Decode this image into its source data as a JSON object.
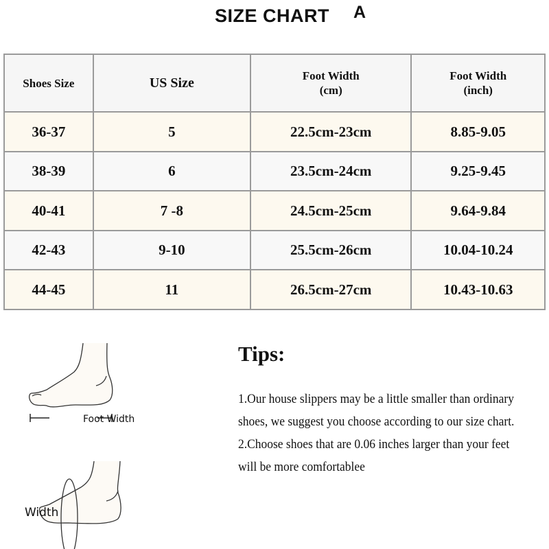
{
  "title": "SIZE CHART",
  "title_mark": "A",
  "table": {
    "headers": [
      {
        "line1": "Shoes Size",
        "line2": ""
      },
      {
        "line1": "US Size",
        "line2": ""
      },
      {
        "line1": "Foot Width",
        "line2": "(cm)"
      },
      {
        "line1": "Foot Width",
        "line2": "(inch)"
      }
    ],
    "rows": [
      [
        "36-37",
        "5",
        "22.5cm-23cm",
        "8.85-9.05"
      ],
      [
        "38-39",
        "6",
        "23.5cm-24cm",
        "9.25-9.45"
      ],
      [
        "40-41",
        "7 -8",
        "24.5cm-25cm",
        "9.64-9.84"
      ],
      [
        "42-43",
        "9-10",
        "25.5cm-26cm",
        "10.04-10.24"
      ],
      [
        "44-45",
        "11",
        "26.5cm-27cm",
        "10.43-10.63"
      ]
    ]
  },
  "figure": {
    "foot_width_label": "Foot Width",
    "width_label": "Width"
  },
  "tips": {
    "heading": "Tips:",
    "tip1": "1.Our house slippers may be a little smaller than ordinary shoes, we suggest you choose according to our size chart.",
    "tip2": "2.Choose shoes that are 0.06 inches larger than your feet will be more comfortablee"
  }
}
